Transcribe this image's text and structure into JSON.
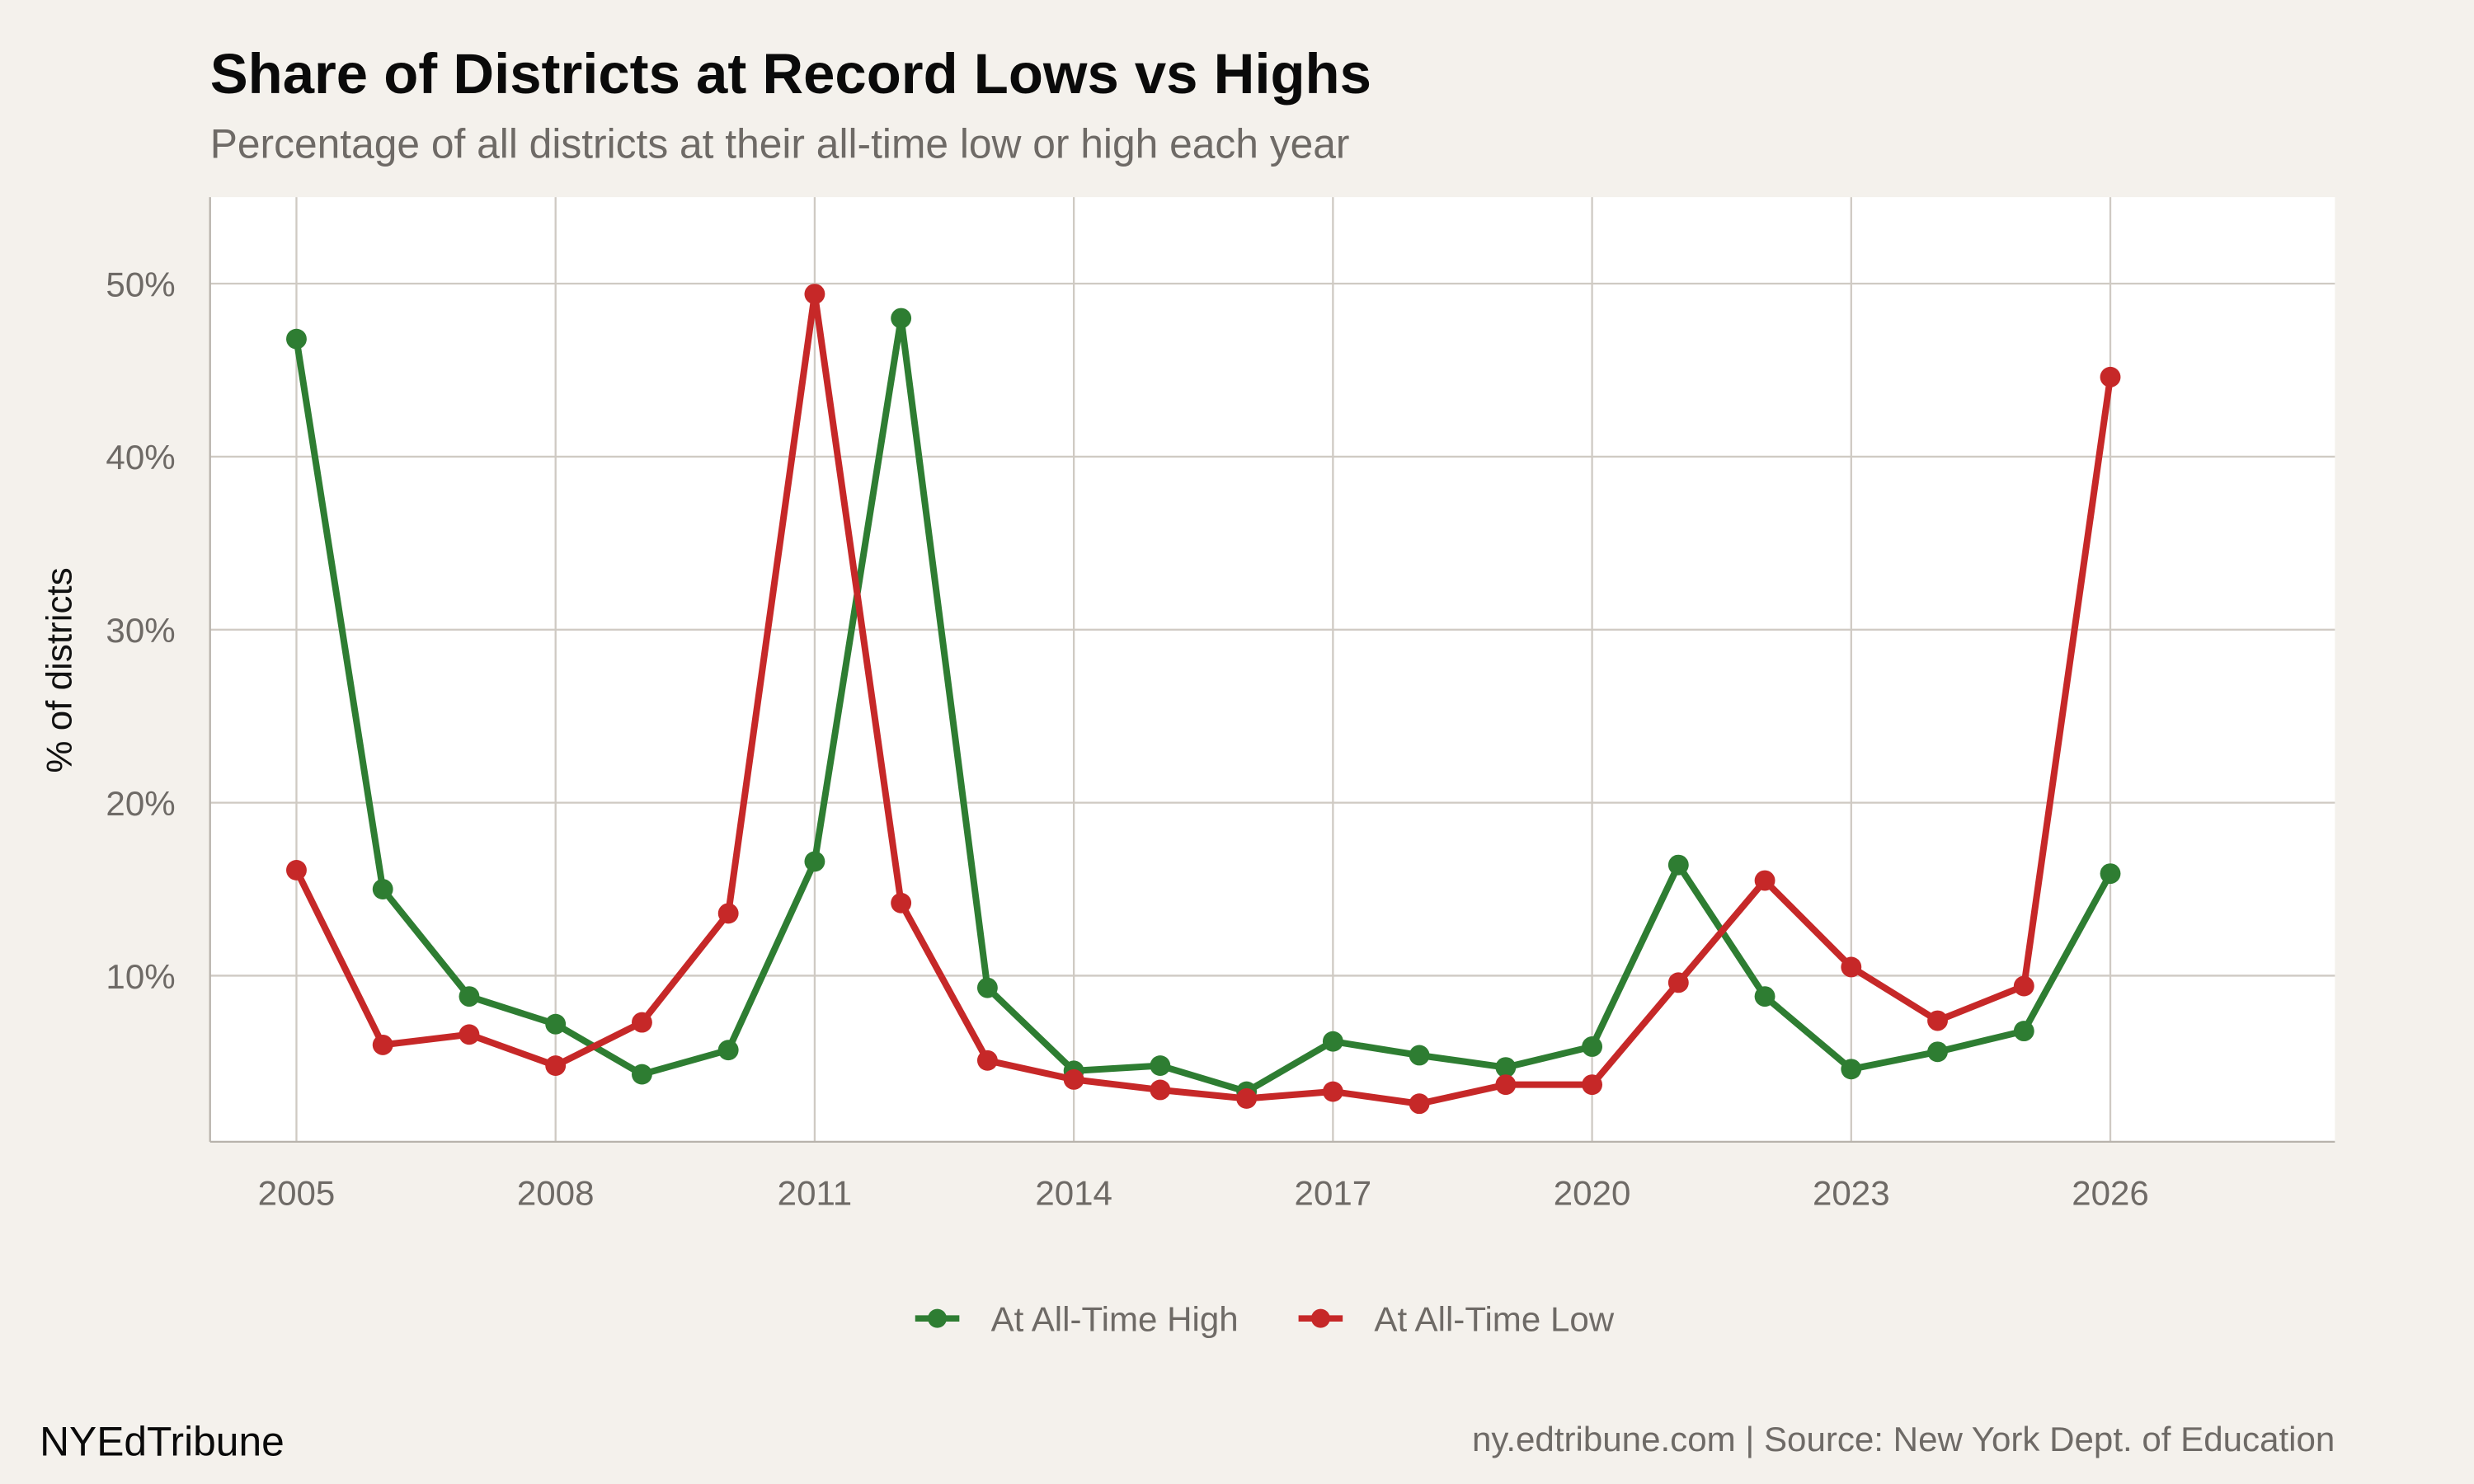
{
  "chart_data": {
    "type": "line",
    "title": "Share of Districts at Record Lows vs Highs",
    "subtitle": "Percentage of all districts at their all-time low or high each year",
    "xlabel": "",
    "ylabel": "% of districts",
    "x": [
      2005,
      2006,
      2007,
      2008,
      2009,
      2010,
      2011,
      2012,
      2013,
      2014,
      2015,
      2016,
      2017,
      2018,
      2019,
      2020,
      2021,
      2022,
      2023,
      2024,
      2025,
      2026
    ],
    "series": [
      {
        "name": "At All-Time High",
        "color": "#2e7d32",
        "values": [
          46.8,
          15.0,
          8.8,
          7.2,
          4.3,
          5.7,
          16.6,
          48.0,
          9.3,
          4.5,
          4.8,
          3.3,
          6.2,
          5.4,
          4.7,
          5.9,
          16.4,
          8.8,
          4.6,
          5.6,
          6.8,
          15.9
        ]
      },
      {
        "name": "At All-Time Low",
        "color": "#c62828",
        "values": [
          16.1,
          6.0,
          6.6,
          4.8,
          7.3,
          13.6,
          49.4,
          14.2,
          5.1,
          4.0,
          3.4,
          2.9,
          3.3,
          2.6,
          3.7,
          3.7,
          9.6,
          15.5,
          10.5,
          7.4,
          9.4,
          44.6
        ]
      }
    ],
    "xlim": [
      2004,
      2028.6
    ],
    "ylim": [
      0.4,
      55
    ],
    "xticks": [
      2005,
      2008,
      2011,
      2014,
      2017,
      2020,
      2023,
      2026
    ],
    "yticks": [
      10,
      20,
      30,
      40,
      50
    ],
    "ytick_labels": [
      "10%",
      "20%",
      "30%",
      "40%",
      "50%"
    ],
    "grid": true,
    "legend_position": "bottom"
  },
  "footer": {
    "brand": "NYEdTribune",
    "caption": "ny.edtribune.com | Source: New York Dept. of Education"
  },
  "colors": {
    "background": "#f4f1ec",
    "panel": "#ffffff",
    "grid": "#cfcac3"
  }
}
